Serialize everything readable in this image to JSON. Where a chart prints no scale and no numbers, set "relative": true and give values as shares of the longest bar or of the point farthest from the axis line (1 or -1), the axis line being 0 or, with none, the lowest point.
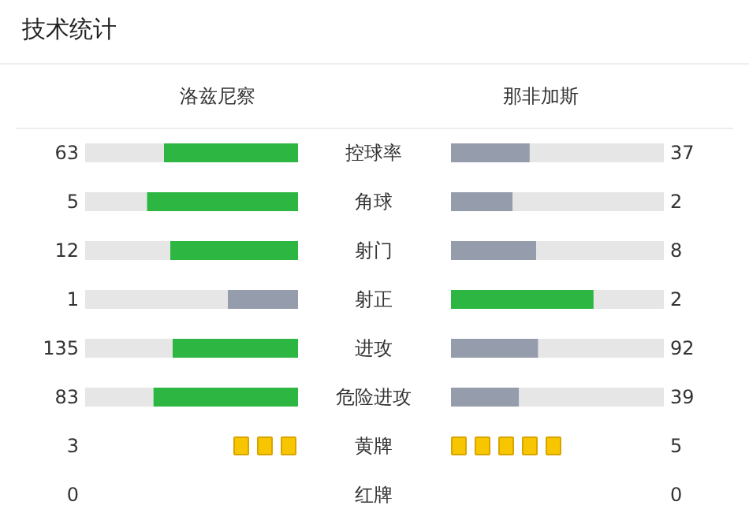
{
  "chart_data": [
    {
      "type": "bar",
      "orientation": "horizontal",
      "relative": true,
      "stacked": true,
      "title": "技术统计",
      "tick_labels": "y",
      "legend": false,
      "categories": [
        "控球率",
        "角球",
        "射门",
        "射正",
        "进攻",
        "危险进攻",
        "黄牌",
        "红牌"
      ],
      "series": [
        {
          "name": "洛兹尼察",
          "colors": [
            "#2db742",
            "#2db742",
            "#2db742",
            "#959cab",
            "#2db742",
            "#2db742",
            null,
            null
          ],
          "values": [
            0.63,
            0.71,
            0.6,
            0.33,
            0.59,
            0.68,
            null,
            null
          ]
        },
        {
          "color": "#e6e6e6",
          "values": [
            0.37,
            0.29,
            0.4,
            0.67,
            0.41,
            0.32,
            null,
            null
          ]
        }
      ],
      "annotations": [
        "63",
        "5",
        "12",
        "1",
        "135",
        "83",
        "3",
        "0"
      ]
    },
    {
      "type": "bar",
      "orientation": "horizontal",
      "relative": true,
      "stacked": true,
      "tick_labels": false,
      "legend": false,
      "categories": [
        null,
        null,
        null,
        null,
        null,
        null,
        null,
        null
      ],
      "series": [
        {
          "name": "那非加斯",
          "colors": [
            "#959cab",
            "#959cab",
            "#959cab",
            "#2db742",
            "#959cab",
            "#959cab",
            null,
            null
          ],
          "values": [
            0.37,
            0.29,
            0.4,
            0.67,
            0.41,
            0.32,
            null,
            null
          ]
        },
        {
          "color": "#e6e6e6",
          "values": [
            0.63,
            0.71,
            0.6,
            0.33,
            0.59,
            0.68,
            null,
            null
          ]
        }
      ],
      "annotations": [
        "37",
        "2",
        "8",
        "2",
        "92",
        "39",
        "5",
        "0"
      ]
    }
  ]
}
